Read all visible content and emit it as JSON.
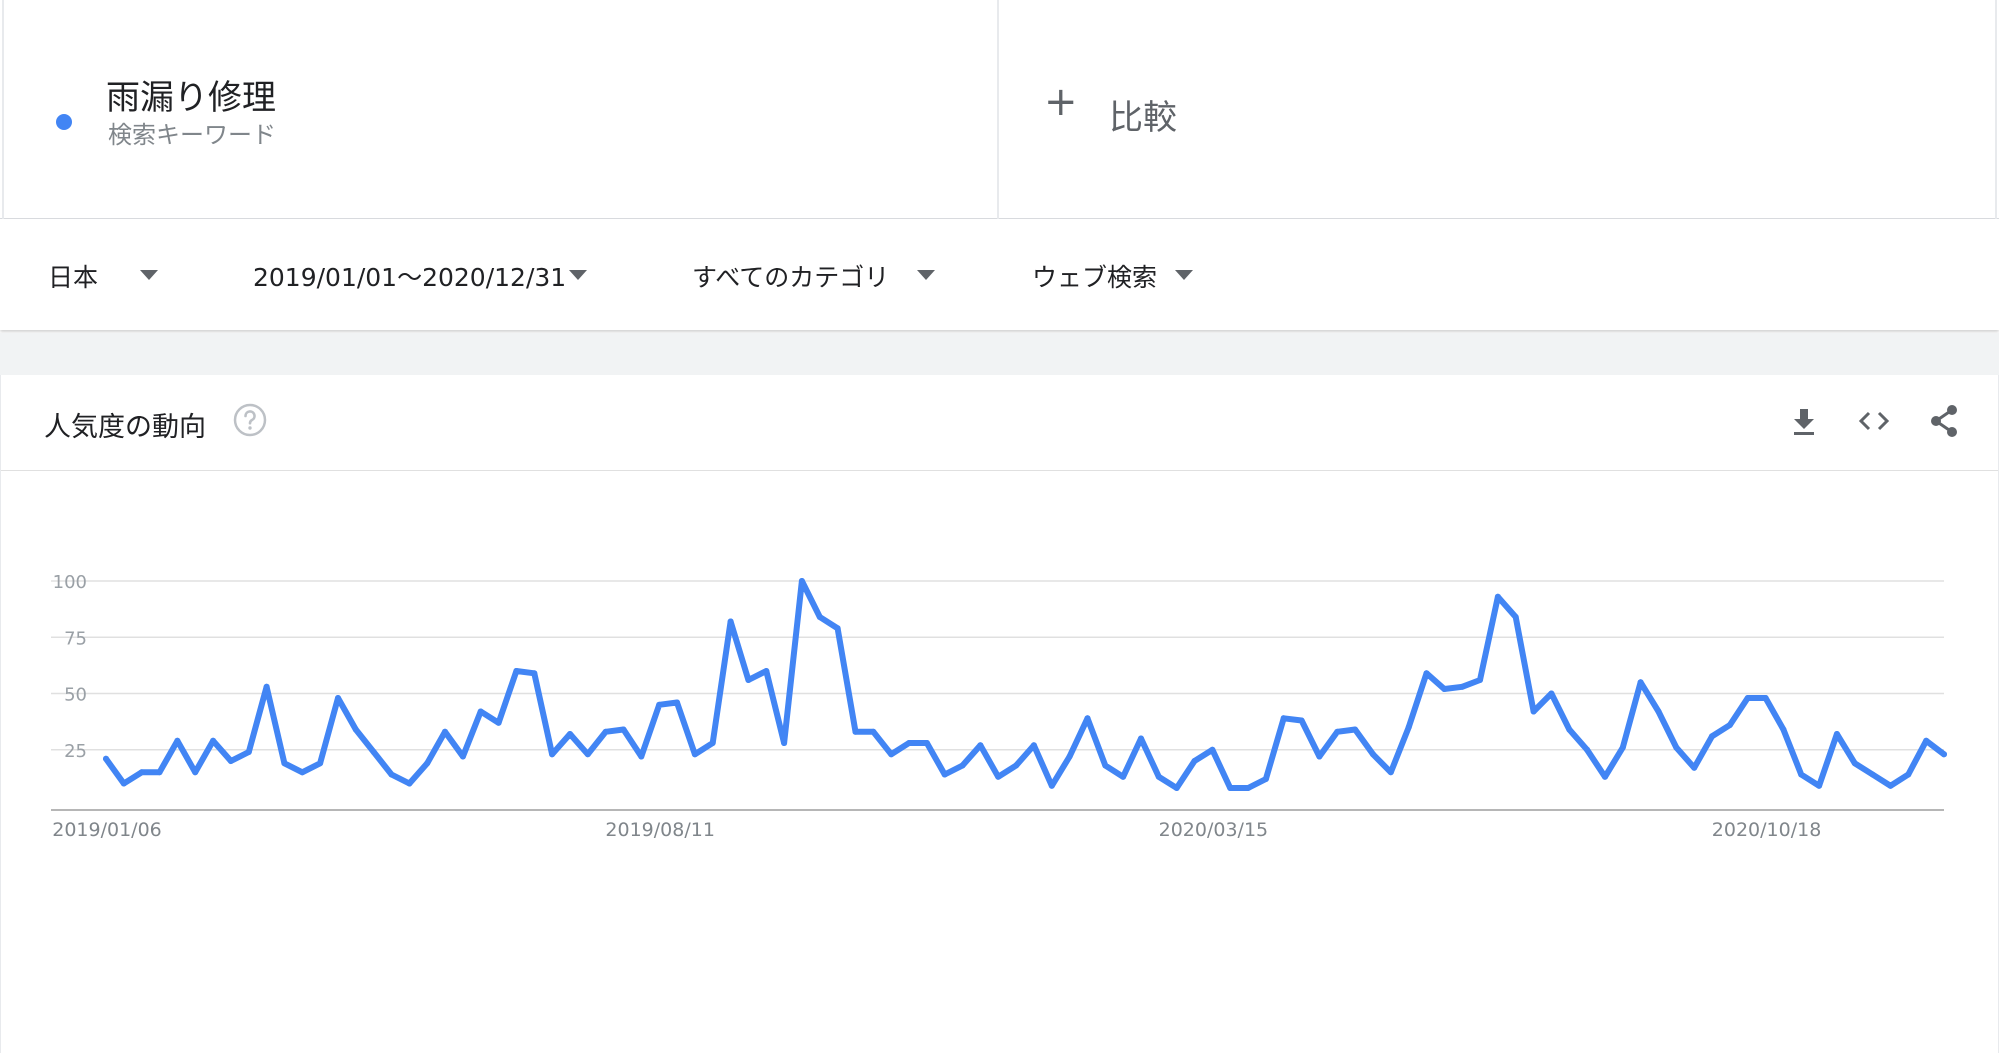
{
  "term": {
    "name": "雨漏り修理",
    "sublabel": "検索キーワード",
    "color": "#4285f4"
  },
  "compare": {
    "plus": "+",
    "label": "比較"
  },
  "filters": {
    "region": "日本",
    "date_range": "2019/01/01～2020/12/31",
    "category": "すべてのカテゴリ",
    "search_type": "ウェブ検索"
  },
  "card": {
    "title": "人気度の動向",
    "icons": [
      "help-icon",
      "download-icon",
      "embed-icon",
      "share-icon"
    ]
  },
  "chart_data": {
    "type": "line",
    "title": "",
    "xlabel": "",
    "ylabel": "",
    "ylim": [
      0,
      100
    ],
    "yticks": [
      25,
      50,
      75,
      100
    ],
    "xtick_labels": [
      "2019/01/06",
      "2019/08/11",
      "2020/03/15",
      "2020/10/18"
    ],
    "xtick_indices": [
      0,
      31,
      62,
      93
    ],
    "grid": true,
    "legend": "none",
    "line_color": "#4285f4",
    "series": [
      {
        "values": [
          21,
          10,
          15,
          15,
          29,
          15,
          29,
          20,
          24,
          53,
          19,
          15,
          19,
          48,
          34,
          24,
          14,
          10,
          19,
          33,
          22,
          42,
          37,
          60,
          59,
          23,
          32,
          23,
          33,
          34,
          22,
          45,
          46,
          23,
          28,
          82,
          56,
          60,
          28,
          100,
          84,
          79,
          33,
          33,
          23,
          28,
          28,
          14,
          18,
          27,
          13,
          18,
          27,
          9,
          22,
          39,
          18,
          13,
          30,
          13,
          8,
          20,
          25,
          8,
          8,
          12,
          39,
          38,
          22,
          33,
          34,
          23,
          15,
          35,
          59,
          52,
          53,
          56,
          93,
          84,
          42,
          50,
          34,
          25,
          13,
          26,
          55,
          42,
          26,
          17,
          31,
          36,
          48,
          48,
          34,
          14,
          9,
          32,
          19,
          14,
          9,
          14,
          29,
          23
        ]
      }
    ]
  }
}
